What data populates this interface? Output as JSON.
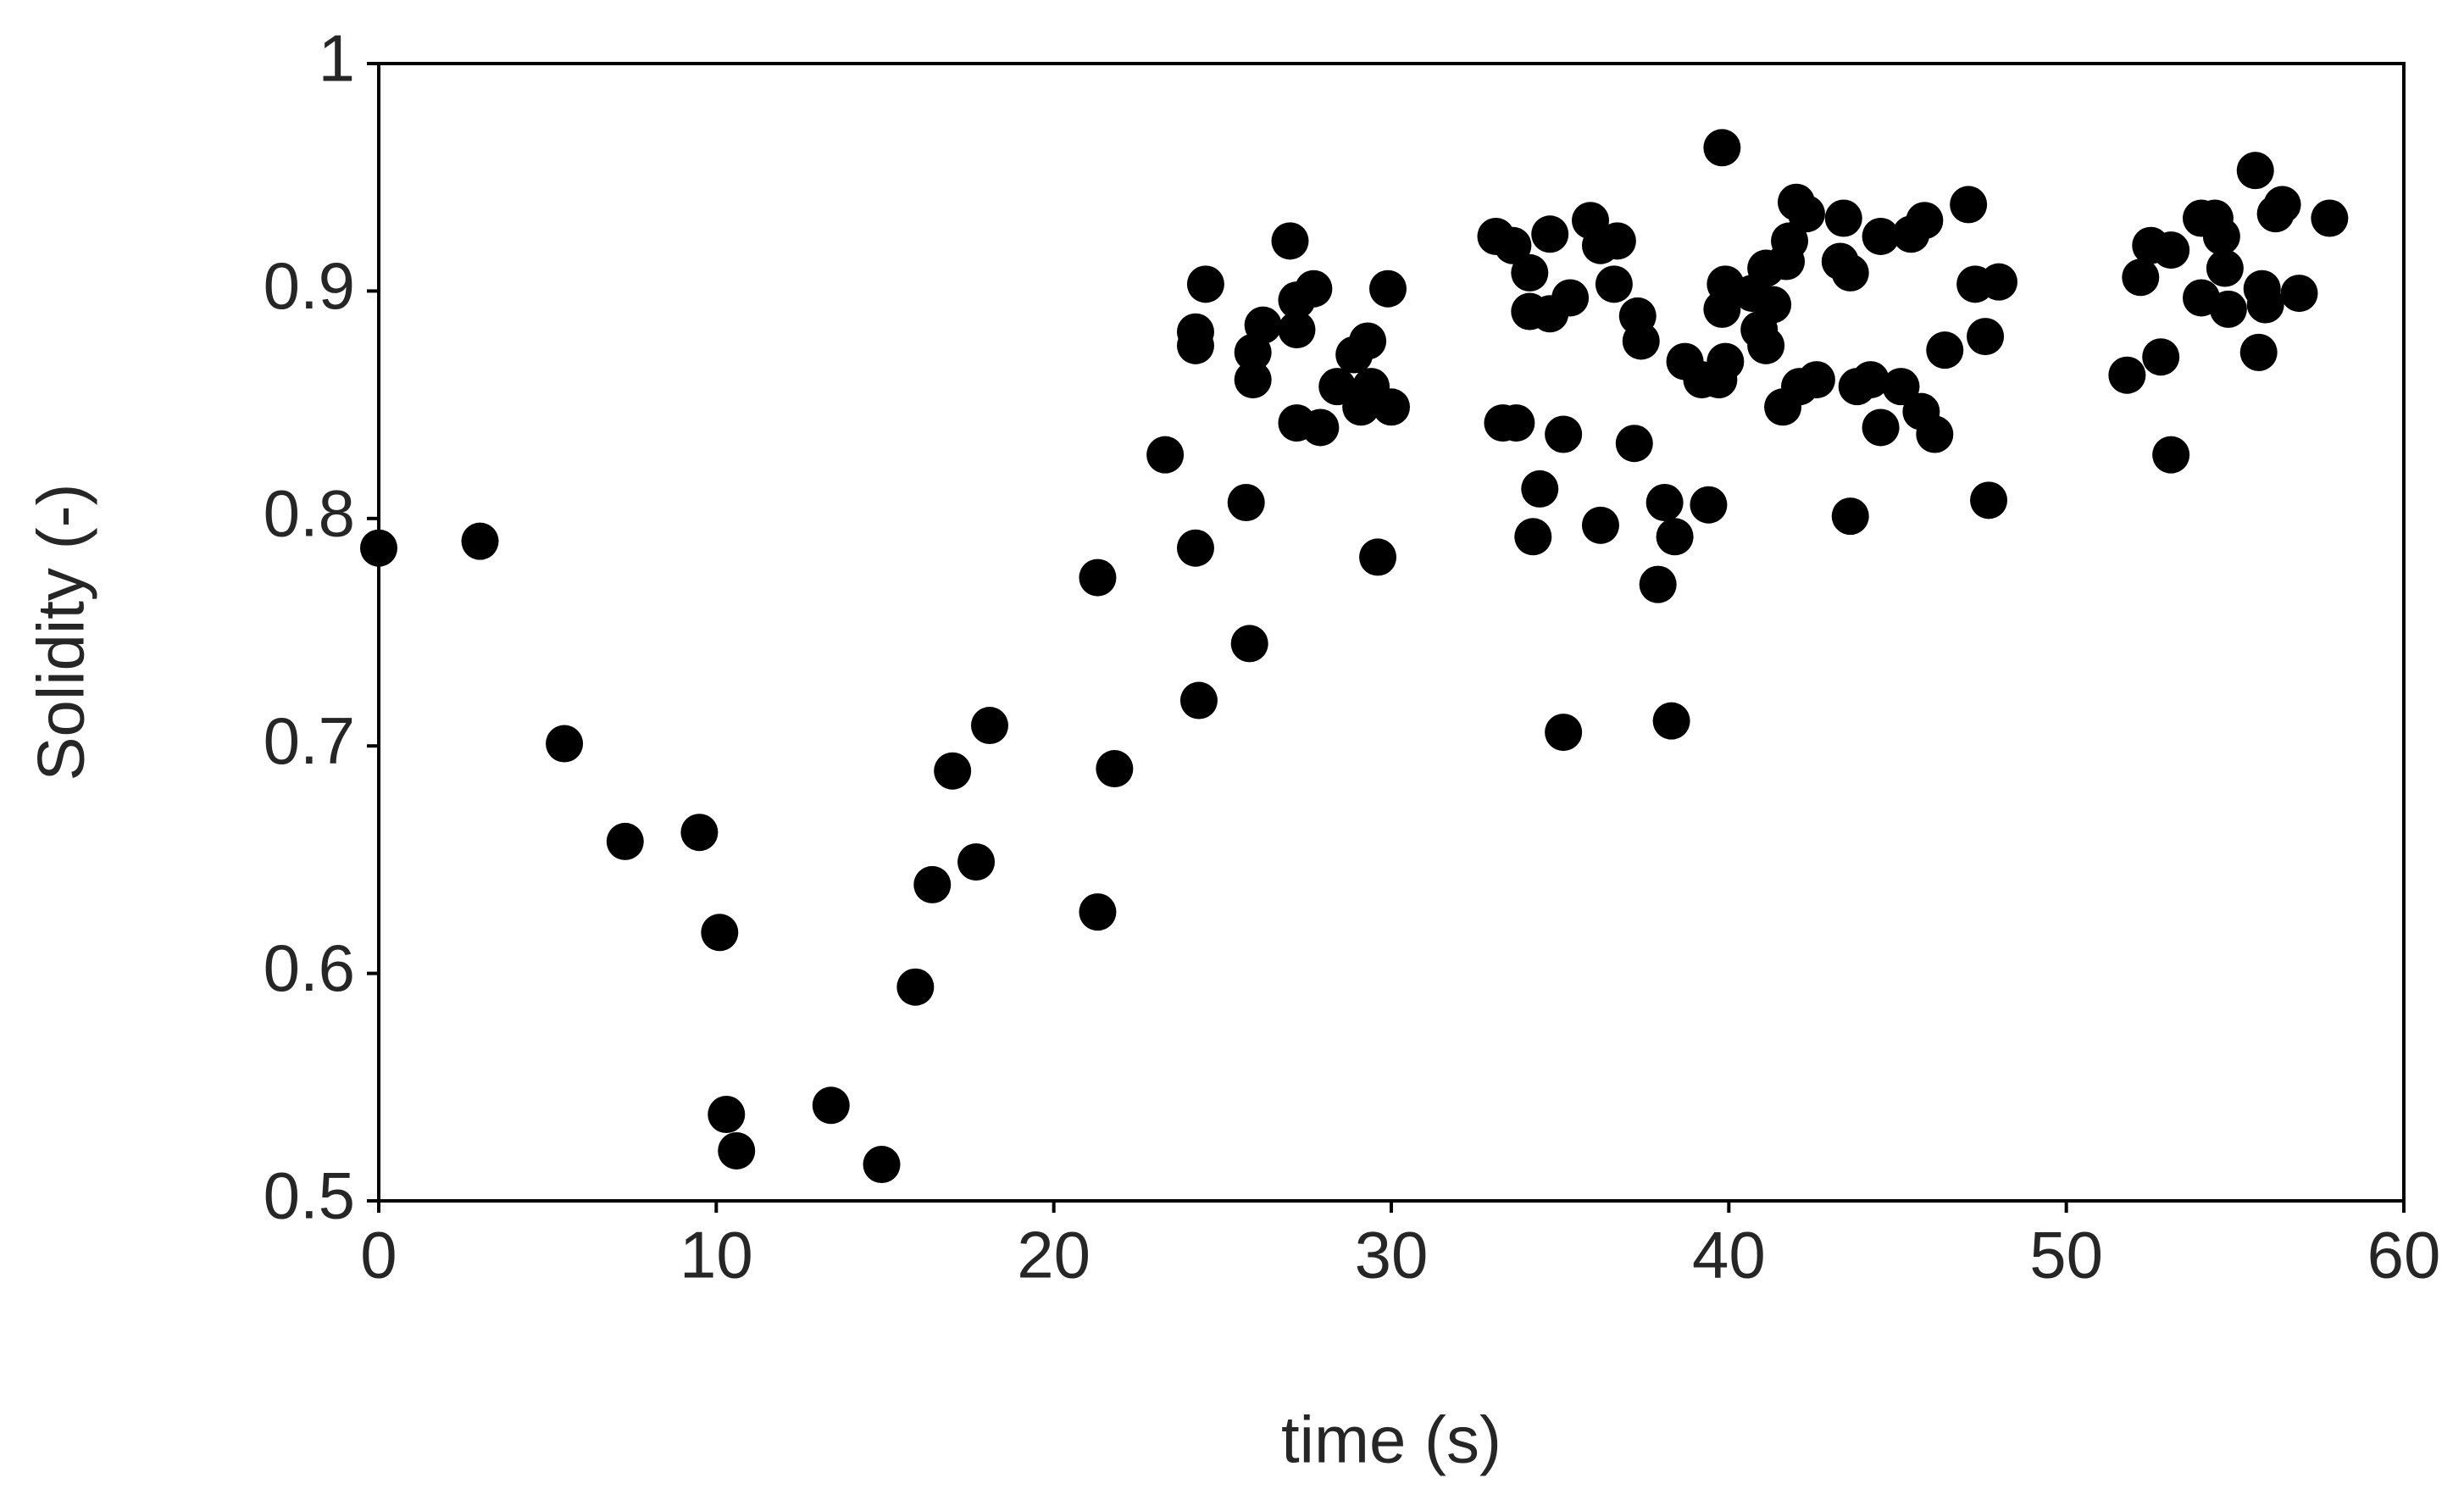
{
  "chart_data": {
    "type": "scatter",
    "xlabel": "time (s)",
    "ylabel": "Solidity (-)",
    "color": "#000000",
    "grid": false,
    "xlim": [
      0,
      60
    ],
    "xticks": [
      0,
      10,
      20,
      30,
      40,
      50,
      60
    ],
    "ylim": [
      0.5,
      1
    ],
    "yticks": [
      0.5,
      0.6,
      0.7,
      0.8,
      0.9,
      1
    ],
    "x": [
      0,
      3.0,
      5.5,
      7.3,
      9.5,
      10.1,
      10.3,
      10.6,
      13.4,
      14.9,
      15.9,
      16.4,
      17.0,
      17.7,
      18.1,
      21.3,
      21.3,
      21.8,
      23.3,
      24.2,
      24.3,
      24.2,
      24.2,
      24.5,
      25.7,
      25.8,
      25.9,
      25.9,
      26.2,
      27.0,
      27.2,
      27.2,
      27.2,
      27.7,
      27.9,
      28.4,
      28.9,
      29.1,
      29.3,
      29.4,
      29.6,
      29.9,
      30.0,
      33.1,
      33.3,
      33.7,
      33.6,
      34.1,
      34.1,
      34.2,
      34.4,
      34.7,
      34.7,
      35.1,
      35.1,
      35.3,
      35.9,
      36.2,
      36.2,
      36.7,
      36.6,
      37.2,
      37.3,
      37.4,
      37.9,
      38.1,
      38.3,
      38.4,
      38.7,
      39.2,
      39.4,
      39.8,
      39.7,
      39.9,
      39.8,
      39.9,
      40.7,
      40.9,
      41.1,
      41.1,
      41.3,
      41.6,
      41.7,
      41.8,
      42.0,
      42.1,
      42.3,
      42.6,
      43.3,
      43.4,
      43.6,
      43.6,
      43.8,
      44.2,
      44.5,
      44.5,
      45.1,
      45.4,
      45.7,
      45.8,
      46.1,
      46.4,
      47.1,
      47.3,
      47.6,
      47.7,
      48.0,
      51.8,
      52.2,
      52.5,
      52.8,
      53.1,
      53.1,
      54.0,
      54.0,
      54.4,
      54.6,
      54.7,
      54.8,
      55.6,
      55.7,
      55.8,
      55.9,
      56.2,
      56.4,
      56.9,
      57.8
    ],
    "values": [
      0.787,
      0.79,
      0.701,
      0.658,
      0.662,
      0.618,
      0.538,
      0.522,
      0.542,
      0.516,
      0.594,
      0.639,
      0.689,
      0.649,
      0.709,
      0.774,
      0.627,
      0.69,
      0.828,
      0.787,
      0.72,
      0.876,
      0.882,
      0.903,
      0.807,
      0.745,
      0.873,
      0.861,
      0.885,
      0.922,
      0.883,
      0.896,
      0.842,
      0.901,
      0.84,
      0.858,
      0.872,
      0.849,
      0.878,
      0.858,
      0.783,
      0.901,
      0.849,
      0.924,
      0.842,
      0.842,
      0.92,
      0.908,
      0.891,
      0.792,
      0.813,
      0.925,
      0.89,
      0.837,
      0.706,
      0.897,
      0.931,
      0.797,
      0.92,
      0.922,
      0.903,
      0.833,
      0.889,
      0.878,
      0.771,
      0.807,
      0.711,
      0.792,
      0.869,
      0.861,
      0.806,
      0.963,
      0.861,
      0.869,
      0.892,
      0.903,
      0.899,
      0.883,
      0.876,
      0.91,
      0.894,
      0.849,
      0.913,
      0.922,
      0.939,
      0.858,
      0.934,
      0.861,
      0.913,
      0.932,
      0.908,
      0.801,
      0.858,
      0.861,
      0.84,
      0.924,
      0.858,
      0.925,
      0.847,
      0.931,
      0.837,
      0.874,
      0.938,
      0.903,
      0.88,
      0.808,
      0.904,
      0.863,
      0.906,
      0.92,
      0.871,
      0.918,
      0.828,
      0.932,
      0.897,
      0.932,
      0.924,
      0.91,
      0.892,
      0.953,
      0.873,
      0.901,
      0.894,
      0.934,
      0.938,
      0.899,
      0.932
    ]
  }
}
